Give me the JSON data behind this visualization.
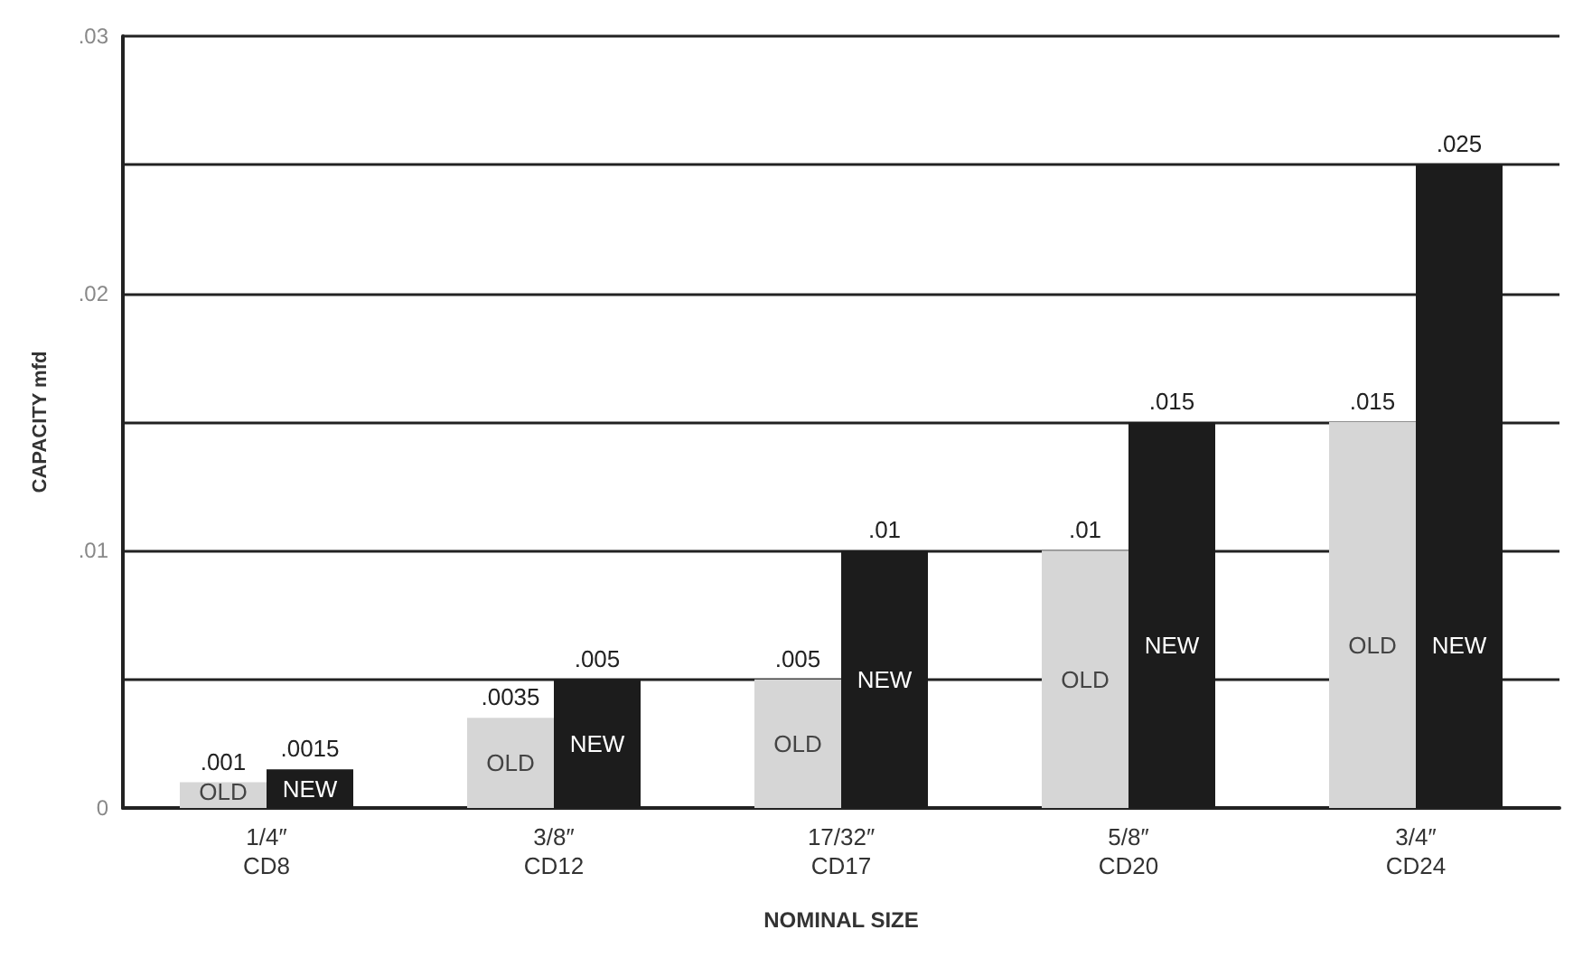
{
  "chart_data": {
    "type": "bar",
    "xlabel": "NOMINAL SIZE",
    "ylabel": "CAPACITY mfd",
    "categories": [
      "1/4″\nCD8",
      "3/8″\nCD12",
      "17/32″\nCD17",
      "5/8″\nCD20",
      "3/4″\nCD24"
    ],
    "series": [
      {
        "name": "OLD",
        "color": "#d6d6d6",
        "values": [
          0.001,
          0.0035,
          0.005,
          0.01,
          0.015
        ],
        "value_labels": [
          ".001",
          ".0035",
          ".005",
          ".01",
          ".015"
        ]
      },
      {
        "name": "NEW",
        "color": "#1c1c1c",
        "values": [
          0.0015,
          0.005,
          0.01,
          0.015,
          0.025
        ],
        "value_labels": [
          ".0015",
          ".005",
          ".01",
          ".015",
          ".025"
        ]
      }
    ],
    "ylim": [
      0,
      0.03
    ],
    "yticks": [
      {
        "value": 0,
        "label": "0"
      },
      {
        "value": 0.005,
        "label": null
      },
      {
        "value": 0.01,
        "label": ".01"
      },
      {
        "value": 0.015,
        "label": null
      },
      {
        "value": 0.02,
        "label": ".02"
      },
      {
        "value": 0.025,
        "label": null
      },
      {
        "value": 0.03,
        "label": ".03"
      }
    ],
    "grid": "y",
    "legend": false
  }
}
